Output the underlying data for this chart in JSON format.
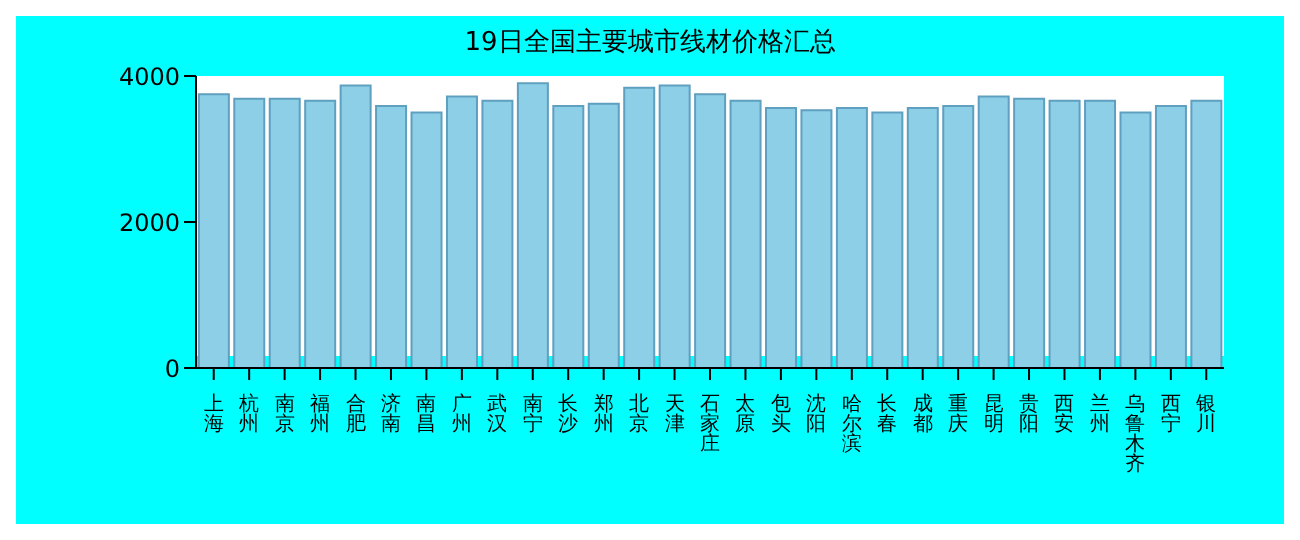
{
  "chart_data": {
    "type": "bar",
    "title": "19日全国主要城市线材价格汇总",
    "categories": [
      "上海",
      "杭州",
      "南京",
      "福州",
      "合肥",
      "济南",
      "南昌",
      "广州",
      "武汉",
      "南宁",
      "长沙",
      "郑州",
      "北京",
      "天津",
      "石家庄",
      "太原",
      "包头",
      "沈阳",
      "哈尔滨",
      "长春",
      "成都",
      "重庆",
      "昆明",
      "贵阳",
      "西安",
      "兰州",
      "乌鲁木齐",
      "西宁",
      "银川"
    ],
    "values": [
      3750,
      3690,
      3690,
      3660,
      3870,
      3590,
      3500,
      3720,
      3660,
      3900,
      3590,
      3620,
      3840,
      3870,
      3750,
      3660,
      3560,
      3530,
      3560,
      3500,
      3560,
      3590,
      3720,
      3690,
      3660,
      3660,
      3500,
      3590,
      3660
    ],
    "color": "#8ecfe8",
    "ylim": [
      0,
      4000
    ],
    "yticks": [
      0,
      2000,
      4000
    ],
    "grid": false
  }
}
